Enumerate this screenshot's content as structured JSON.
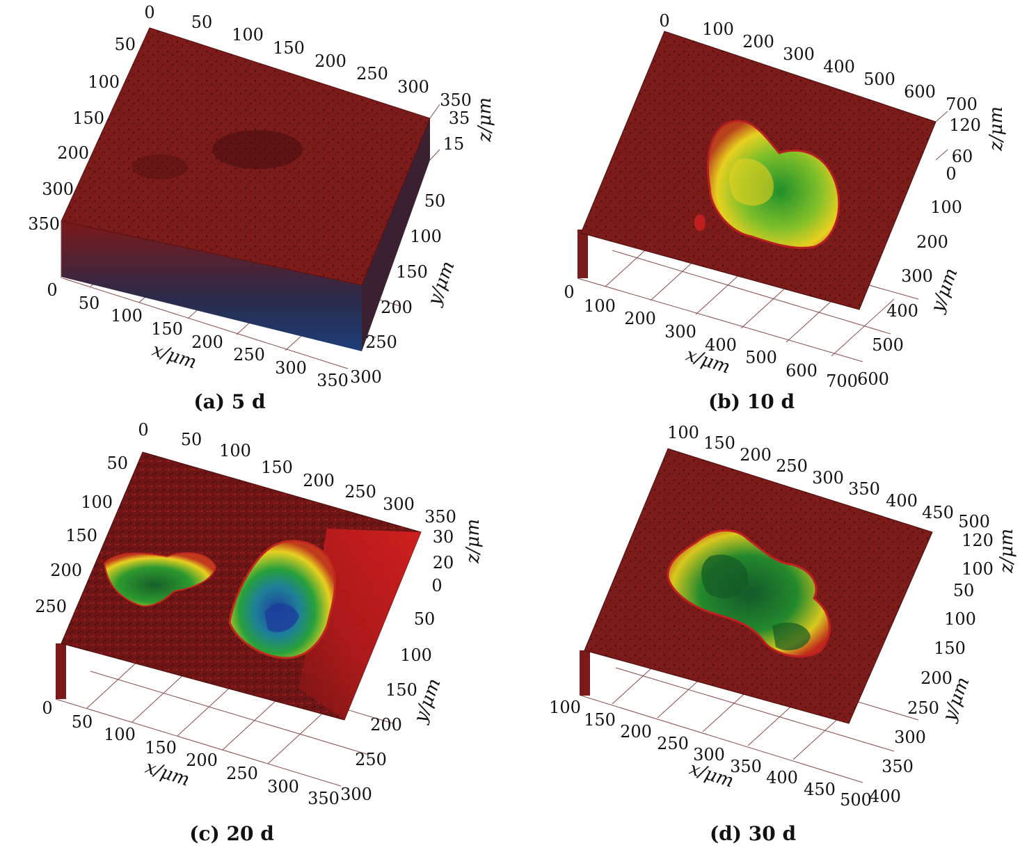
{
  "panels": [
    {
      "id": "a",
      "caption": "(a) 5 d",
      "x_ticks_top": [
        "0",
        "50",
        "100",
        "150",
        "200",
        "250",
        "300",
        "350"
      ],
      "y_ticks_left": [
        "50",
        "100",
        "150",
        "200",
        "300",
        "350"
      ],
      "z_ticks": [
        "35",
        "15"
      ],
      "x_ticks_bottom": [
        "0",
        "50",
        "100",
        "150",
        "200",
        "250",
        "300",
        "350"
      ],
      "y_ticks_right": [
        "50",
        "100",
        "150",
        "200",
        "250",
        "300"
      ],
      "x_label": "x/μm",
      "y_label": "y/μm",
      "z_label": "z/μm",
      "pits": []
    },
    {
      "id": "b",
      "caption": "(b) 10 d",
      "x_ticks_top": [
        "0",
        "100",
        "200",
        "300",
        "400",
        "500",
        "600",
        "700"
      ],
      "y_ticks_left": [],
      "z_ticks": [
        "120",
        "60"
      ],
      "x_ticks_bottom": [
        "0",
        "100",
        "200",
        "300",
        "400",
        "500",
        "600",
        "700"
      ],
      "y_ticks_right": [
        "0",
        "100",
        "200",
        "300",
        "400",
        "500",
        "600"
      ],
      "x_label": "x/μm",
      "y_label": "y/μm",
      "z_label": "z/μm",
      "pits": [
        "single pit"
      ]
    },
    {
      "id": "c",
      "caption": "(c) 20 d",
      "x_ticks_top": [
        "0",
        "50",
        "100",
        "150",
        "200",
        "250",
        "300",
        "350"
      ],
      "y_ticks_left": [
        "50",
        "100",
        "150",
        "200",
        "250"
      ],
      "z_ticks": [
        "30",
        "20",
        "0"
      ],
      "x_ticks_bottom": [
        "0",
        "50",
        "100",
        "150",
        "200",
        "250",
        "300",
        "350"
      ],
      "y_ticks_right": [
        "50",
        "100",
        "150",
        "200",
        "250",
        "300"
      ],
      "x_label": "x/μm",
      "y_label": "y/μm",
      "z_label": "z/μm",
      "pits": [
        "left pit",
        "right pit"
      ]
    },
    {
      "id": "d",
      "caption": "(d) 30 d",
      "x_ticks_top": [
        "100",
        "150",
        "200",
        "250",
        "300",
        "350",
        "400",
        "450",
        "500"
      ],
      "y_ticks_left": [],
      "z_ticks": [
        "120",
        "100"
      ],
      "x_ticks_bottom": [
        "100",
        "150",
        "200",
        "250",
        "300",
        "350",
        "400",
        "450",
        "500"
      ],
      "y_ticks_right": [
        "50",
        "100",
        "150",
        "200",
        "250",
        "300",
        "350",
        "400"
      ],
      "x_label": "x/μm",
      "y_label": "y/μm",
      "z_label": "z/μm",
      "pits": [
        "merged pit"
      ]
    }
  ],
  "colors": {
    "surface": "#7a1a1a",
    "surface_dark": "#4e0f0f",
    "bright_red": "#d81e1e",
    "pit_yellow": "#e8d020",
    "pit_green": "#1f8f2a",
    "pit_blue": "#1c3f9c",
    "grid": "#8a4a4a"
  }
}
